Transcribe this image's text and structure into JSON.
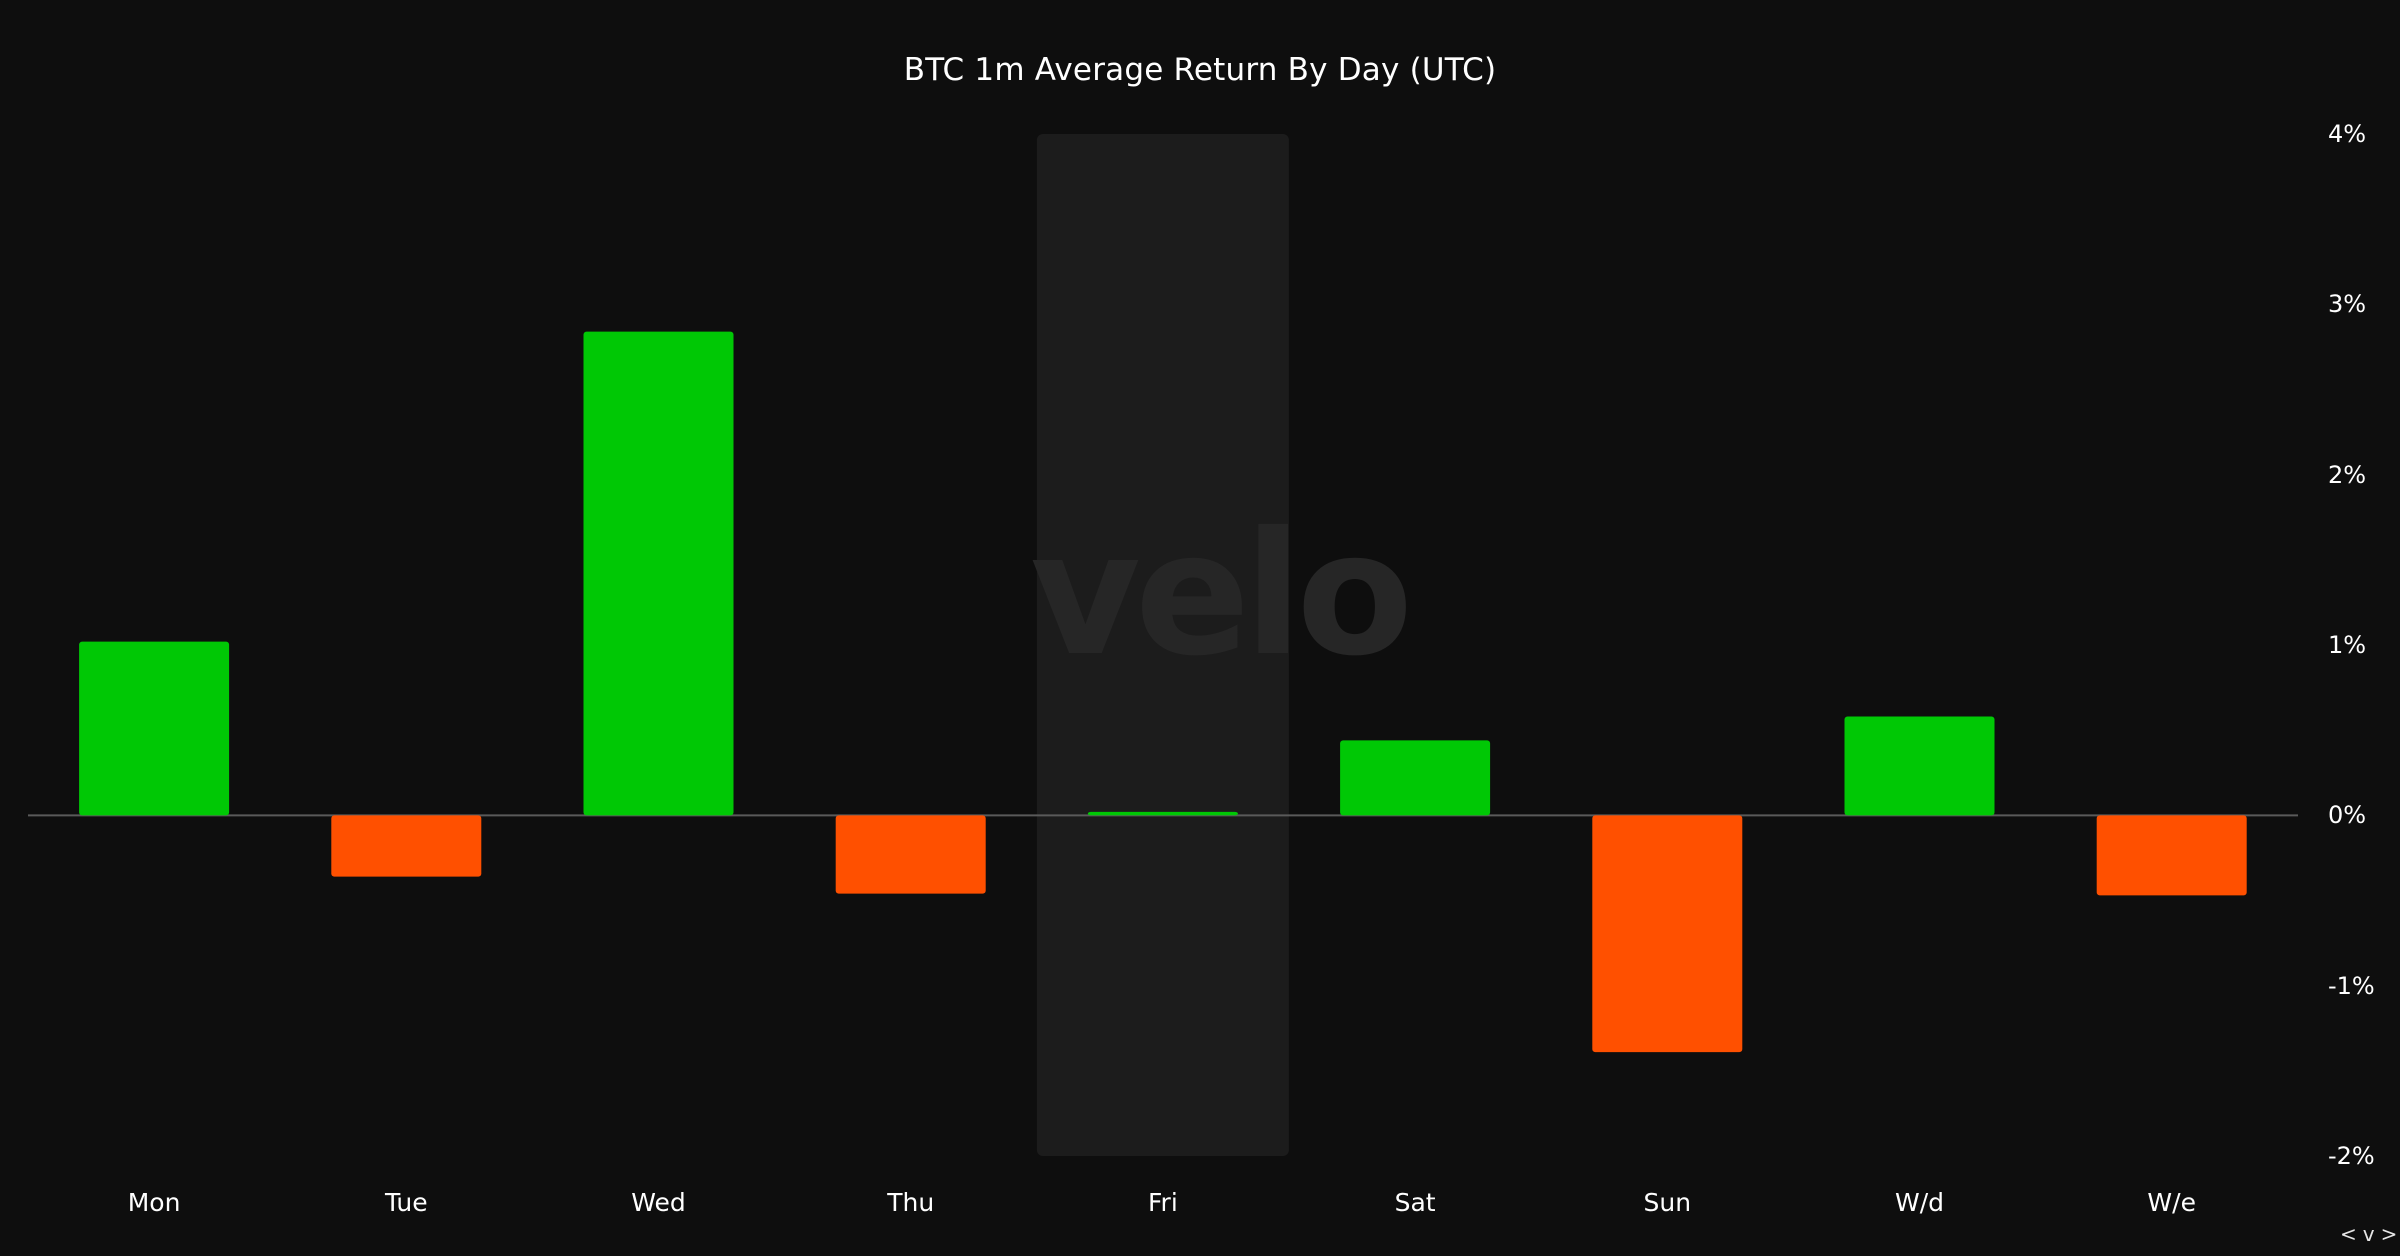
{
  "chart_data": {
    "type": "bar",
    "title": "BTC 1m Average Return By Day (UTC)",
    "categories": [
      "Mon",
      "Tue",
      "Wed",
      "Thu",
      "Fri",
      "Sat",
      "Sun",
      "W/d",
      "W/e"
    ],
    "values": [
      1.02,
      -0.36,
      2.84,
      -0.46,
      0.02,
      0.44,
      -1.39,
      0.58,
      -0.47
    ],
    "unit": "%",
    "ylim": [
      -2,
      4
    ],
    "yticks": [
      4,
      3,
      2,
      1,
      0,
      -1,
      -2
    ],
    "ytick_labels": [
      "4%",
      "3%",
      "2%",
      "1%",
      "0%",
      "-1%",
      "-2%"
    ],
    "y_axis_position": "right",
    "highlighted_category": "Fri",
    "grid": false,
    "legend": "none",
    "colors": {
      "positive": "#00c805",
      "negative": "#ff5000",
      "background": "#0e0e0e",
      "highlight_band": "#1c1c1c",
      "zero_line": "#5a5a5a",
      "watermark": "#262626"
    }
  },
  "watermark": "velo",
  "nav_arrows": "<v>"
}
